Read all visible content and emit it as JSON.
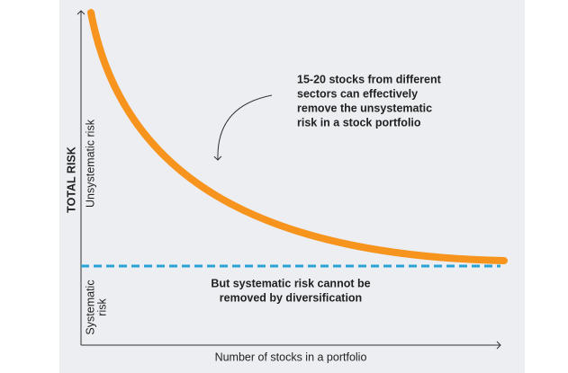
{
  "axes": {
    "y_label": "TOTAL RISK",
    "x_label": "Number of stocks in a portfolio"
  },
  "regions": {
    "unsystematic": "Unsystematic risk",
    "systematic": [
      "Systematic",
      "risk"
    ]
  },
  "annotations": {
    "top": [
      "15-20 stocks from different",
      "sectors can effectively",
      "remove the unsystematic",
      "risk in a stock portfolio"
    ],
    "bottom": [
      "But systematic risk cannot be",
      "removed by diversification"
    ]
  }
}
